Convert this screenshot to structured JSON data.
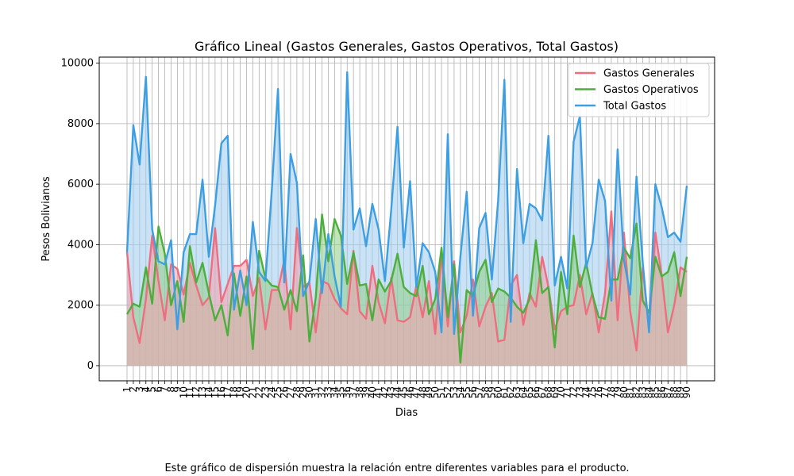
{
  "chart_data": {
    "type": "area",
    "title": "Gráfico Lineal (Gastos Generales, Gastos Operativos, Total Gastos)",
    "xlabel": "Dias",
    "ylabel": "Pesos Bolivianos",
    "ylim": [
      -500,
      10200
    ],
    "yticks": [
      0,
      2000,
      4000,
      6000,
      8000,
      10000
    ],
    "grid": true,
    "legend_position": "top-right",
    "x": [
      "1",
      "2",
      "3",
      "4",
      "5",
      "6",
      "7",
      "8",
      "9",
      "10",
      "11",
      "12",
      "13",
      "14",
      "15",
      "16",
      "17",
      "18",
      "19",
      "20",
      "21",
      "22",
      "23",
      "24",
      "25",
      "26",
      "27",
      "28",
      "29",
      "30",
      "31",
      "32",
      "33",
      "34",
      "35",
      "36",
      "37",
      "38",
      "39",
      "40",
      "41",
      "42",
      "43",
      "44",
      "45",
      "46",
      "47",
      "48",
      "49",
      "50",
      "51",
      "52",
      "53",
      "54",
      "55",
      "56",
      "57",
      "58",
      "59",
      "60",
      "61",
      "62",
      "63",
      "64",
      "65",
      "66",
      "67",
      "68",
      "69",
      "70",
      "71",
      "72",
      "73",
      "74",
      "75",
      "76",
      "77",
      "78",
      "79",
      "80",
      "81",
      "82",
      "83",
      "84",
      "85",
      "86",
      "87",
      "88",
      "89",
      "90"
    ],
    "series": [
      {
        "name": "Gastos Generales",
        "color": "#f06d7f",
        "values": [
          3750,
          1600,
          750,
          2200,
          4300,
          2800,
          1500,
          3350,
          3200,
          2350,
          3400,
          2650,
          2000,
          2250,
          4550,
          2100,
          2700,
          3300,
          3300,
          3500,
          2300,
          2900,
          1200,
          2500,
          2500,
          3500,
          1200,
          4550,
          2600,
          2750,
          1100,
          2800,
          2700,
          2200,
          1900,
          1700,
          3800,
          1800,
          1550,
          3300,
          2100,
          1400,
          2900,
          1500,
          1450,
          1600,
          2650,
          1600,
          2800,
          1050,
          3700,
          1300,
          3450,
          1100,
          1650,
          2850,
          1300,
          1950,
          2400,
          800,
          850,
          2650,
          3000,
          1350,
          2400,
          1950,
          3600,
          2600,
          1200,
          1800,
          1950,
          2000,
          3000,
          1700,
          2400,
          1100,
          2400,
          5100,
          1500,
          4400,
          1800,
          500,
          3250,
          1200,
          4400,
          3000,
          1100,
          2000,
          3250,
          3100
        ]
      },
      {
        "name": "Gastos Operativos",
        "color": "#4caf3b",
        "values": [
          1700,
          2050,
          1950,
          3250,
          2050,
          4600,
          3700,
          2000,
          2800,
          1450,
          3950,
          2750,
          3400,
          2400,
          1500,
          2000,
          1000,
          3050,
          1650,
          2950,
          550,
          3800,
          2900,
          2650,
          2600,
          1850,
          2500,
          1800,
          3650,
          800,
          2250,
          5000,
          3450,
          4850,
          4300,
          2700,
          3750,
          2650,
          2700,
          1500,
          2850,
          2450,
          2800,
          3700,
          2600,
          2400,
          2300,
          3300,
          1700,
          2200,
          3900,
          1600,
          3350,
          100,
          2500,
          2300,
          3100,
          3500,
          2100,
          2550,
          2450,
          2250,
          1950,
          1750,
          2200,
          4150,
          2400,
          2600,
          600,
          3100,
          1700,
          4300,
          2600,
          3400,
          2350,
          1600,
          1550,
          2850,
          2850,
          3900,
          3550,
          4700,
          2150,
          1750,
          3600,
          2950,
          3100,
          3750,
          2300,
          3600
        ]
      },
      {
        "name": "Total Gastos",
        "color": "#3d9fe3",
        "values": [
          3750,
          7950,
          6650,
          9550,
          4500,
          3450,
          3350,
          4150,
          1200,
          3750,
          4350,
          4350,
          6150,
          3600,
          5300,
          7350,
          7600,
          1850,
          3150,
          2000,
          4750,
          3100,
          2800,
          5750,
          9150,
          2750,
          7000,
          6050,
          2300,
          2800,
          4850,
          2400,
          4350,
          2950,
          1950,
          9700,
          4500,
          5200,
          3950,
          5350,
          4500,
          2800,
          5150,
          7900,
          3900,
          6100,
          2600,
          4050,
          3750,
          3100,
          1100,
          7650,
          1050,
          3600,
          5750,
          1650,
          4550,
          5050,
          2850,
          5450,
          9450,
          1450,
          6500,
          4050,
          5350,
          5200,
          4800,
          7600,
          2650,
          3600,
          2550,
          7400,
          8250,
          3250,
          4050,
          6150,
          5450,
          2150,
          7150,
          3500,
          2350,
          6250,
          3400,
          1100,
          6000,
          5250,
          4250,
          4400,
          4100,
          5950
        ]
      }
    ]
  },
  "caption": "Este gráfico de dispersión muestra la relación entre diferentes variables para el producto."
}
